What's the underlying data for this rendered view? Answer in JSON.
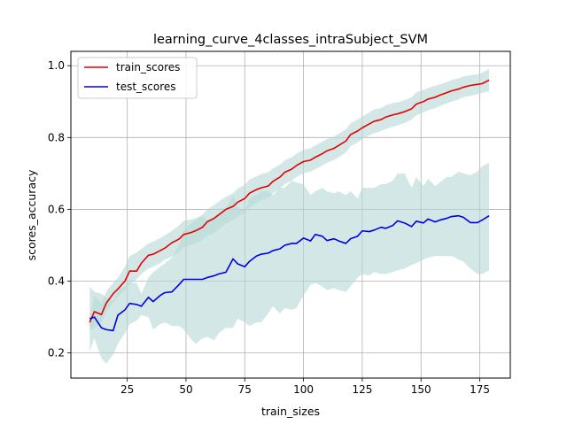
{
  "chart_data": {
    "type": "line",
    "title": "learning_curve_4classes_intraSubject_SVM",
    "xlabel": "train_sizes",
    "ylabel": "scores_accuracy",
    "xlim": [
      1,
      188
    ],
    "ylim": [
      0.13,
      1.04
    ],
    "xticks": [
      25,
      50,
      75,
      100,
      125,
      150,
      175
    ],
    "yticks": [
      0.2,
      0.4,
      0.6,
      0.8,
      1.0
    ],
    "xtick_labels": [
      "25",
      "50",
      "75",
      "100",
      "125",
      "150",
      "175"
    ],
    "ytick_labels": [
      "0.2",
      "0.4",
      "0.6",
      "0.8",
      "1.0"
    ],
    "grid": true,
    "legend_position": "top-left",
    "band_color": "#b5d9d5",
    "x": [
      9,
      11,
      14,
      16,
      19,
      21,
      24,
      26,
      29,
      31,
      34,
      36,
      39,
      41,
      44,
      47,
      49,
      52,
      54,
      57,
      59,
      62,
      64,
      67,
      70,
      72,
      75,
      77,
      80,
      82,
      85,
      87,
      90,
      92,
      95,
      97,
      100,
      103,
      105,
      108,
      110,
      113,
      115,
      118,
      120,
      123,
      125,
      128,
      130,
      133,
      135,
      138,
      140,
      143,
      146,
      148,
      151,
      153,
      156,
      158,
      161,
      163,
      166,
      168,
      171,
      174,
      176,
      179
    ],
    "series": [
      {
        "name": "train_scores",
        "color": "#e50000",
        "values": [
          0.285,
          0.315,
          0.307,
          0.338,
          0.365,
          0.378,
          0.4,
          0.428,
          0.428,
          0.45,
          0.472,
          0.475,
          0.485,
          0.492,
          0.507,
          0.517,
          0.53,
          0.535,
          0.54,
          0.55,
          0.565,
          0.575,
          0.585,
          0.6,
          0.608,
          0.62,
          0.63,
          0.645,
          0.655,
          0.66,
          0.665,
          0.678,
          0.69,
          0.703,
          0.712,
          0.722,
          0.733,
          0.737,
          0.745,
          0.755,
          0.763,
          0.77,
          0.778,
          0.79,
          0.808,
          0.818,
          0.827,
          0.838,
          0.845,
          0.85,
          0.857,
          0.863,
          0.866,
          0.872,
          0.88,
          0.893,
          0.9,
          0.907,
          0.912,
          0.918,
          0.925,
          0.93,
          0.935,
          0.94,
          0.945,
          0.948,
          0.95,
          0.96
        ]
      },
      {
        "name": "test_scores",
        "color": "#0000e0",
        "values": [
          0.295,
          0.3,
          0.27,
          0.265,
          0.262,
          0.305,
          0.32,
          0.338,
          0.335,
          0.33,
          0.355,
          0.343,
          0.36,
          0.368,
          0.37,
          0.39,
          0.405,
          0.405,
          0.405,
          0.405,
          0.41,
          0.415,
          0.42,
          0.425,
          0.462,
          0.448,
          0.44,
          0.455,
          0.47,
          0.475,
          0.478,
          0.485,
          0.49,
          0.5,
          0.505,
          0.505,
          0.52,
          0.512,
          0.53,
          0.525,
          0.513,
          0.518,
          0.512,
          0.505,
          0.518,
          0.525,
          0.54,
          0.538,
          0.542,
          0.55,
          0.547,
          0.555,
          0.568,
          0.562,
          0.552,
          0.567,
          0.562,
          0.573,
          0.565,
          0.57,
          0.575,
          0.58,
          0.582,
          0.578,
          0.563,
          0.563,
          0.57,
          0.582
        ]
      }
    ],
    "bands": [
      {
        "series": "train_scores",
        "lower": [
          0.265,
          0.27,
          0.285,
          0.315,
          0.34,
          0.355,
          0.375,
          0.39,
          0.405,
          0.42,
          0.435,
          0.44,
          0.45,
          0.46,
          0.468,
          0.48,
          0.495,
          0.5,
          0.505,
          0.515,
          0.525,
          0.535,
          0.545,
          0.56,
          0.57,
          0.58,
          0.59,
          0.605,
          0.618,
          0.625,
          0.632,
          0.645,
          0.658,
          0.67,
          0.68,
          0.69,
          0.7,
          0.705,
          0.712,
          0.722,
          0.73,
          0.738,
          0.745,
          0.758,
          0.776,
          0.786,
          0.796,
          0.806,
          0.812,
          0.818,
          0.824,
          0.83,
          0.834,
          0.84,
          0.85,
          0.862,
          0.87,
          0.876,
          0.882,
          0.888,
          0.895,
          0.9,
          0.906,
          0.912,
          0.916,
          0.92,
          0.924,
          0.928
        ],
        "upper": [
          0.3,
          0.36,
          0.335,
          0.37,
          0.395,
          0.41,
          0.44,
          0.47,
          0.48,
          0.49,
          0.505,
          0.51,
          0.52,
          0.528,
          0.54,
          0.555,
          0.568,
          0.572,
          0.575,
          0.585,
          0.6,
          0.612,
          0.622,
          0.635,
          0.645,
          0.658,
          0.668,
          0.683,
          0.692,
          0.698,
          0.703,
          0.714,
          0.725,
          0.736,
          0.745,
          0.755,
          0.766,
          0.77,
          0.778,
          0.788,
          0.796,
          0.803,
          0.811,
          0.822,
          0.84,
          0.85,
          0.858,
          0.87,
          0.878,
          0.882,
          0.89,
          0.896,
          0.898,
          0.904,
          0.912,
          0.926,
          0.932,
          0.938,
          0.944,
          0.948,
          0.955,
          0.96,
          0.965,
          0.97,
          0.974,
          0.976,
          0.98,
          0.992
        ]
      },
      {
        "series": "test_scores",
        "lower": [
          0.205,
          0.24,
          0.185,
          0.17,
          0.195,
          0.225,
          0.255,
          0.28,
          0.29,
          0.305,
          0.3,
          0.265,
          0.28,
          0.285,
          0.275,
          0.275,
          0.265,
          0.24,
          0.225,
          0.24,
          0.245,
          0.235,
          0.255,
          0.27,
          0.27,
          0.295,
          0.285,
          0.275,
          0.285,
          0.285,
          0.31,
          0.33,
          0.31,
          0.325,
          0.32,
          0.325,
          0.36,
          0.39,
          0.395,
          0.385,
          0.375,
          0.38,
          0.375,
          0.37,
          0.385,
          0.41,
          0.42,
          0.415,
          0.425,
          0.42,
          0.42,
          0.425,
          0.43,
          0.435,
          0.445,
          0.45,
          0.46,
          0.465,
          0.47,
          0.47,
          0.47,
          0.47,
          0.46,
          0.455,
          0.435,
          0.42,
          0.42,
          0.43
        ],
        "upper": [
          0.385,
          0.37,
          0.365,
          0.355,
          0.345,
          0.375,
          0.385,
          0.395,
          0.395,
          0.365,
          0.41,
          0.425,
          0.44,
          0.45,
          0.465,
          0.5,
          0.54,
          0.56,
          0.57,
          0.58,
          0.57,
          0.58,
          0.59,
          0.6,
          0.64,
          0.605,
          0.595,
          0.63,
          0.64,
          0.65,
          0.65,
          0.64,
          0.66,
          0.66,
          0.68,
          0.675,
          0.67,
          0.64,
          0.65,
          0.66,
          0.65,
          0.645,
          0.65,
          0.64,
          0.65,
          0.63,
          0.66,
          0.66,
          0.66,
          0.67,
          0.67,
          0.68,
          0.7,
          0.7,
          0.66,
          0.69,
          0.665,
          0.685,
          0.665,
          0.675,
          0.69,
          0.69,
          0.705,
          0.7,
          0.695,
          0.705,
          0.72,
          0.73
        ]
      }
    ]
  }
}
